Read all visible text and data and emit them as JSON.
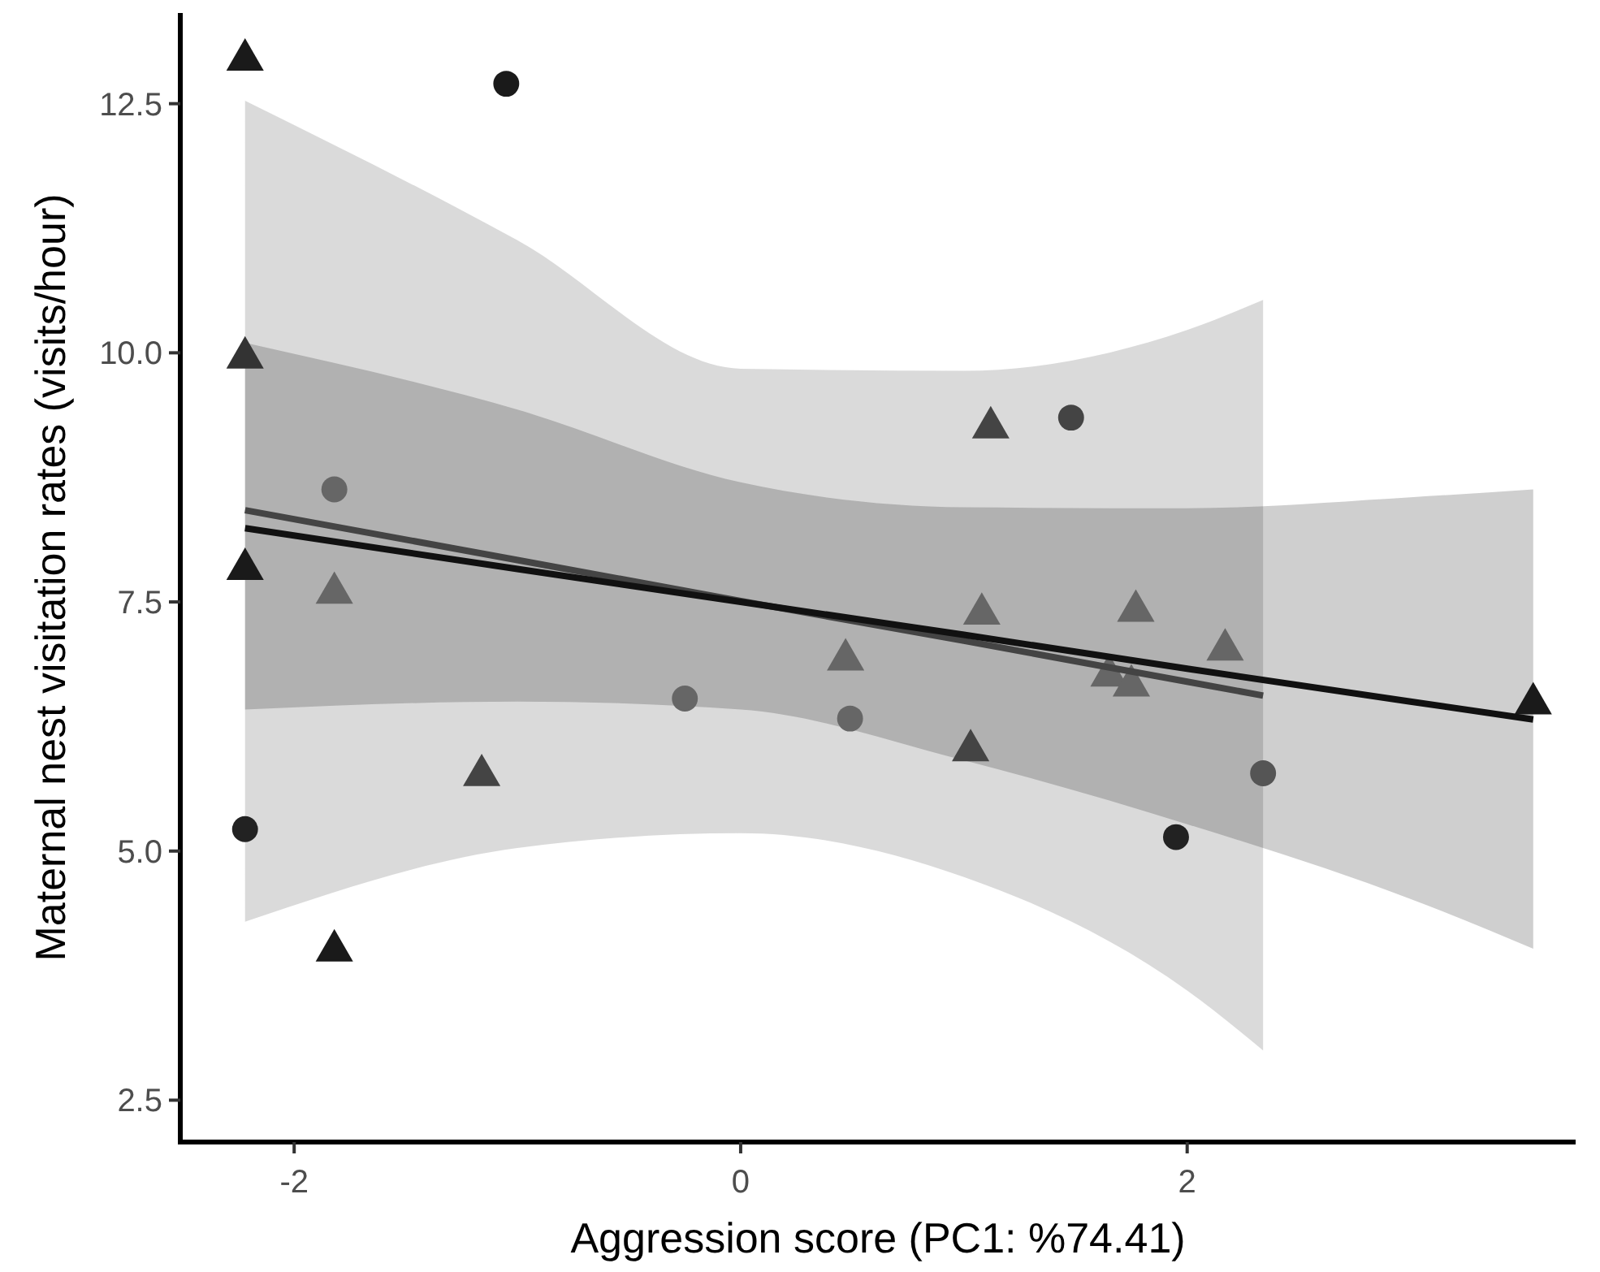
{
  "chart_data": {
    "type": "scatter",
    "xlabel": "Aggression score (PC1: %74.41)",
    "ylabel": "Maternal nest visitation rates (visits/hour)",
    "xlim": [
      -2.51,
      3.74
    ],
    "ylim": [
      2.08,
      13.41
    ],
    "xticks": [
      -2,
      0,
      2
    ],
    "yticks": [
      2.5,
      {
        "value": 5,
        "label": "5.0"
      },
      7.5,
      {
        "value": 10,
        "label": "10.0"
      },
      12.5
    ],
    "grid": false,
    "series": [
      {
        "marker": "circle",
        "x": [
          -2.22,
          -1.05,
          -1.82,
          -0.25,
          0.49,
          1.48,
          1.95,
          2.34
        ],
        "values": [
          5.22,
          12.7,
          8.63,
          6.53,
          6.33,
          9.35,
          5.14,
          5.78
        ],
        "colors": [
          "#222222",
          "#1a1a1a",
          "#666666",
          "#666666",
          "#666666",
          "#444444",
          "#222222",
          "#555555"
        ]
      },
      {
        "marker": "triangle",
        "x": [
          -2.22,
          -2.22,
          -2.22,
          -1.82,
          -1.82,
          -1.16,
          1.12,
          1.08,
          0.47,
          1.03,
          1.77,
          1.65,
          1.75,
          2.17,
          3.55
        ],
        "values": [
          12.94,
          9.95,
          7.83,
          7.59,
          4.0,
          5.76,
          9.25,
          7.38,
          6.92,
          6.01,
          7.41,
          6.76,
          6.66,
          7.02,
          6.48
        ],
        "colors": [
          "#1a1a1a",
          "#333333",
          "#1a1a1a",
          "#666666",
          "#1a1a1a",
          "#444444",
          "#444444",
          "#666666",
          "#666666",
          "#444444",
          "#666666",
          "#666666",
          "#666666",
          "#666666",
          "#1a1a1a"
        ]
      },
      {
        "type": "line",
        "color": "#444444",
        "x": [
          -2.22,
          -1,
          0,
          1,
          2,
          2.34
        ],
        "values": [
          8.42,
          7.92,
          7.51,
          7.11,
          6.7,
          6.56
        ],
        "lower": [
          4.29,
          5.03,
          5.18,
          4.74,
          3.6,
          3.0
        ],
        "upper": [
          12.53,
          11.13,
          9.84,
          9.82,
          10.23,
          10.53
        ]
      },
      {
        "type": "line",
        "color": "#111111",
        "x": [
          -2.22,
          -1,
          0,
          1,
          2,
          3,
          3.55
        ],
        "values": [
          8.24,
          7.83,
          7.5,
          7.17,
          6.83,
          6.5,
          6.32
        ],
        "lower": [
          6.42,
          6.5,
          6.42,
          5.91,
          5.27,
          4.52,
          4.02
        ],
        "upper": [
          10.1,
          9.43,
          8.7,
          8.45,
          8.44,
          8.55,
          8.63
        ]
      }
    ]
  }
}
